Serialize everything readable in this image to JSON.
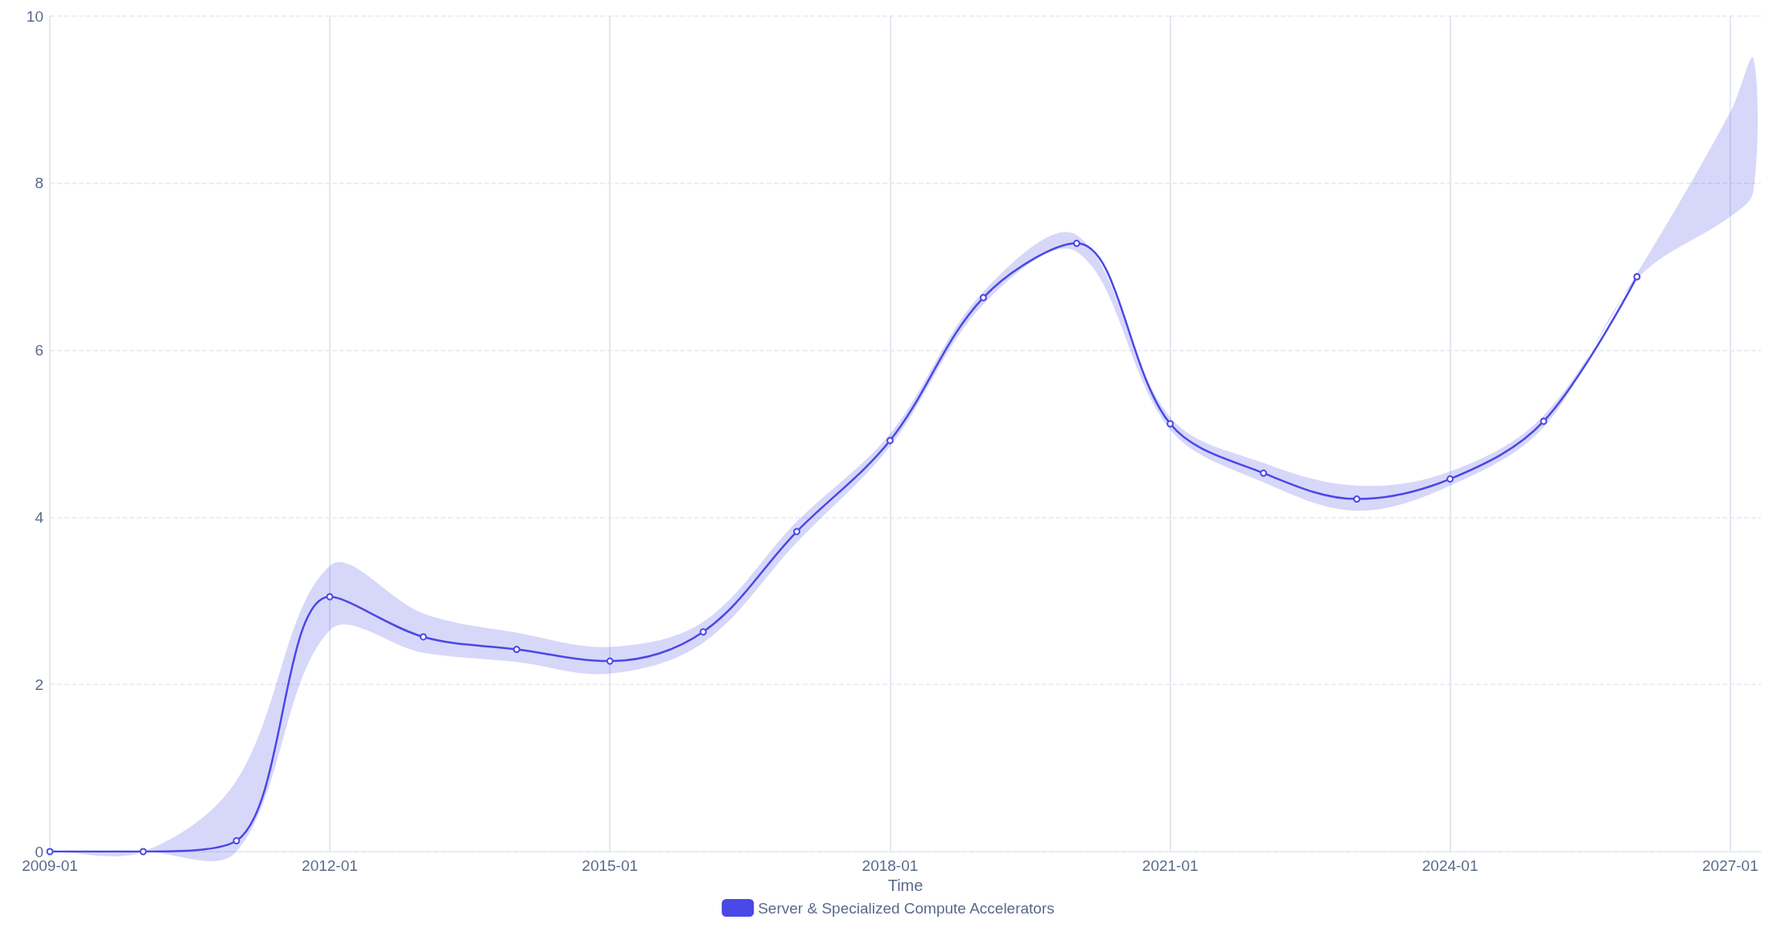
{
  "chart_data": {
    "type": "line",
    "xlabel": "Time",
    "x": [
      "2009-01",
      "2010-01",
      "2011-01",
      "2012-01",
      "2013-01",
      "2014-01",
      "2015-01",
      "2016-01",
      "2017-01",
      "2018-01",
      "2019-01",
      "2020-01",
      "2021-01",
      "2022-01",
      "2023-01",
      "2024-01",
      "2025-01",
      "2026-01",
      "2027-01",
      "2027-04"
    ],
    "series": [
      {
        "name": "Server & Specialized Compute Accelerators",
        "color": "#4a48e6",
        "values": [
          0,
          0,
          0.13,
          3.05,
          2.57,
          2.42,
          2.28,
          2.63,
          3.83,
          4.92,
          6.63,
          7.28,
          5.12,
          4.53,
          4.22,
          4.46,
          5.15,
          6.88,
          null,
          null
        ],
        "lower": [
          0,
          0,
          0,
          2.65,
          2.38,
          2.27,
          2.13,
          2.5,
          3.7,
          4.85,
          6.55,
          7.18,
          5.05,
          4.42,
          4.08,
          4.38,
          5.08,
          6.85,
          7.6,
          7.9
        ],
        "upper": [
          0,
          0,
          0.85,
          3.42,
          2.85,
          2.62,
          2.45,
          2.75,
          3.95,
          5.0,
          6.7,
          7.38,
          5.2,
          4.65,
          4.38,
          4.55,
          5.22,
          6.92,
          8.85,
          9.5
        ]
      }
    ],
    "xlim": [
      "2009-01",
      "2027-05"
    ],
    "xticks": [
      "2009-01",
      "2012-01",
      "2015-01",
      "2018-01",
      "2021-01",
      "2024-01",
      "2027-01"
    ],
    "ylim": [
      0,
      10
    ],
    "yticks": [
      0,
      2,
      4,
      6,
      8,
      10
    ],
    "grid": true,
    "legend": "bottom",
    "marker": "circle",
    "line_style": "solid"
  }
}
